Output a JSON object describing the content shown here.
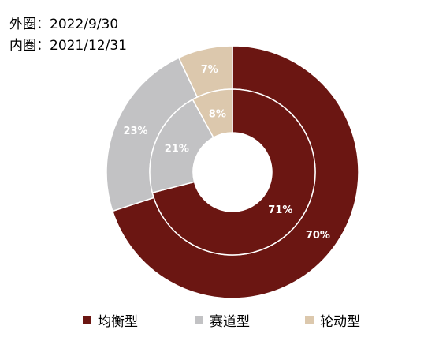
{
  "header": {
    "outer_label": "外圈：2022/9/30",
    "inner_label": "内圈：2021/12/31"
  },
  "chart_data": {
    "type": "pie",
    "categories": [
      "均衡型",
      "赛道型",
      "轮动型"
    ],
    "colors": [
      "#6b1612",
      "#c2c2c4",
      "#dcc8ad"
    ],
    "series": [
      {
        "ring": "outer",
        "values": [
          70,
          23,
          7
        ],
        "labels": [
          "70%",
          "23%",
          "7%"
        ]
      },
      {
        "ring": "inner",
        "values": [
          71,
          21,
          8
        ],
        "labels": [
          "71%",
          "21%",
          "8%"
        ]
      }
    ],
    "legend_position": "bottom"
  }
}
